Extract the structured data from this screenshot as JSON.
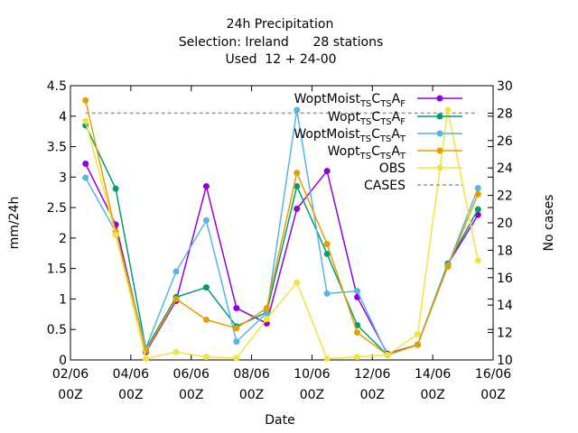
{
  "chart_data": {
    "type": "line",
    "title_lines": [
      "24h Precipitation",
      "Selection: Ireland      28 stations",
      "Used  12 + 24-00"
    ],
    "xlabel": "Date",
    "ylabel": "mm/24h",
    "y2label": "No cases",
    "xlim": [
      0,
      14
    ],
    "ylim": [
      0,
      4.5
    ],
    "y2lim": [
      10,
      30
    ],
    "x_ticks": [
      {
        "x": 0,
        "line1": "02/06",
        "line2": "00Z"
      },
      {
        "x": 2,
        "line1": "04/06",
        "line2": "00Z"
      },
      {
        "x": 4,
        "line1": "06/06",
        "line2": "00Z"
      },
      {
        "x": 6,
        "line1": "08/06",
        "line2": "00Z"
      },
      {
        "x": 8,
        "line1": "10/06",
        "line2": "00Z"
      },
      {
        "x": 10,
        "line1": "12/06",
        "line2": "00Z"
      },
      {
        "x": 12,
        "line1": "14/06",
        "line2": "00Z"
      },
      {
        "x": 14,
        "line1": "16/06",
        "line2": "00Z"
      }
    ],
    "y_ticks": [
      "0",
      "0.5",
      "1",
      "1.5",
      "2",
      "2.5",
      "3",
      "3.5",
      "4",
      "4.5"
    ],
    "y2_ticks": [
      "10",
      "12",
      "14",
      "16",
      "18",
      "20",
      "22",
      "24",
      "26",
      "28",
      "30"
    ],
    "x": [
      0.5,
      1.5,
      2.5,
      3.5,
      4.5,
      5.5,
      6.5,
      7.5,
      8.5,
      9.5,
      10.5,
      11.5,
      12.5,
      13.5
    ],
    "series": [
      {
        "legend_main": "WoptMoist",
        "legend_sub": "TS",
        "legend_mid": "C",
        "legend_sub2": "TS",
        "legend_a": "A",
        "legend_suffix": "F",
        "color": "#9400d3",
        "marker": "circle",
        "values": [
          3.22,
          2.22,
          0.13,
          0.97,
          2.85,
          0.85,
          0.6,
          2.48,
          3.1,
          1.03,
          0.1,
          0.25,
          1.57,
          2.38
        ]
      },
      {
        "legend_main": "Wopt",
        "legend_sub": "TS",
        "legend_mid": "C",
        "legend_sub2": "TS",
        "legend_a": "A",
        "legend_suffix": "F",
        "color": "#009e73",
        "marker": "circle",
        "values": [
          3.85,
          2.81,
          0.18,
          1.03,
          1.19,
          0.55,
          0.78,
          2.85,
          1.74,
          0.57,
          0.08,
          0.25,
          1.58,
          2.47
        ]
      },
      {
        "legend_main": "WoptMoist",
        "legend_sub": "TS",
        "legend_mid": "C",
        "legend_sub2": "TS",
        "legend_a": "A",
        "legend_suffix": "T",
        "color": "#56b4e9",
        "marker": "circle",
        "values": [
          2.99,
          2.1,
          0.2,
          1.45,
          2.29,
          0.3,
          0.77,
          4.1,
          1.09,
          1.13,
          0.08,
          0.25,
          1.55,
          2.82
        ]
      },
      {
        "legend_main": "Wopt",
        "legend_sub": "TS",
        "legend_mid": "C",
        "legend_sub2": "TS",
        "legend_a": "A",
        "legend_suffix": "T",
        "color": "#e69f00",
        "marker": "circle",
        "values": [
          4.26,
          2.1,
          0.15,
          1.0,
          0.66,
          0.52,
          0.85,
          3.07,
          1.9,
          0.45,
          0.08,
          0.25,
          1.53,
          2.72
        ]
      },
      {
        "legend_main": "OBS",
        "color": "#f0e442",
        "marker": "circle",
        "values": [
          3.92,
          2.05,
          0.02,
          0.13,
          0.05,
          0.03,
          0.67,
          1.27,
          0.02,
          0.05,
          0.08,
          0.42,
          4.1,
          1.63
        ]
      }
    ],
    "cases": {
      "legend": "CASES",
      "color": "#999999",
      "value": 28
    }
  }
}
